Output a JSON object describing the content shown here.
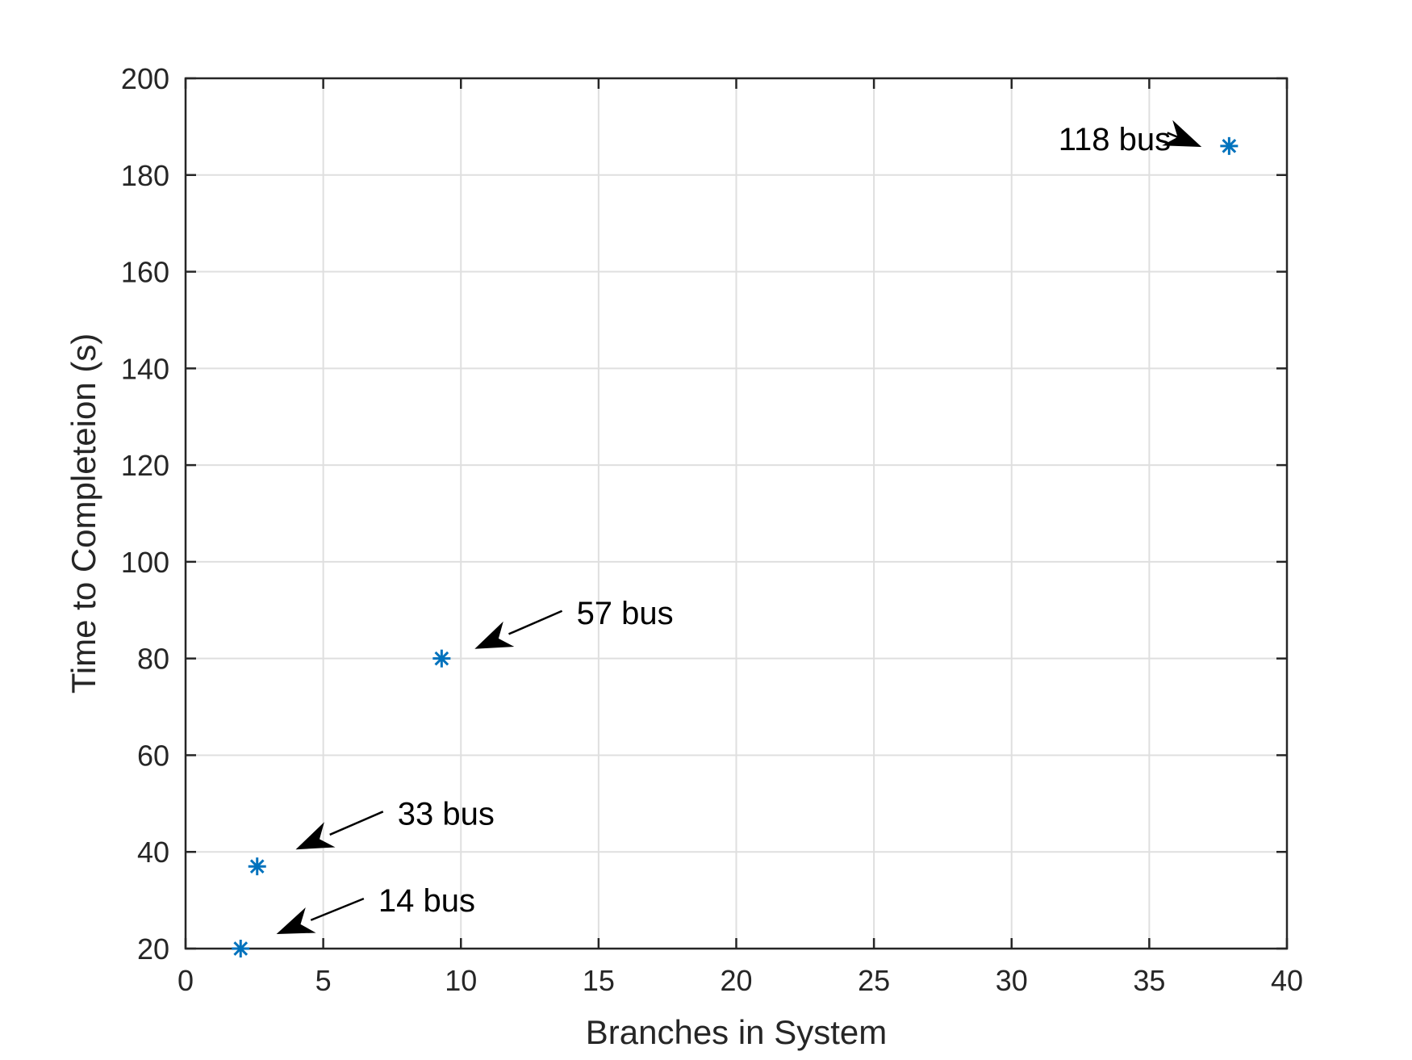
{
  "chart_data": {
    "type": "scatter",
    "title": "",
    "xlabel": "Branches in System",
    "ylabel": "Time to Completeion (s)",
    "xlim": [
      0,
      40
    ],
    "ylim": [
      20,
      200
    ],
    "xticks": [
      0,
      5,
      10,
      15,
      20,
      25,
      30,
      35,
      40
    ],
    "yticks": [
      20,
      40,
      60,
      80,
      100,
      120,
      140,
      160,
      180,
      200
    ],
    "xtick_labels": [
      "0",
      "5",
      "10",
      "15",
      "20",
      "25",
      "30",
      "35",
      "40"
    ],
    "ytick_labels": [
      "20",
      "40",
      "60",
      "80",
      "100",
      "120",
      "140",
      "160",
      "180",
      "200"
    ],
    "grid": true,
    "marker": "asterisk",
    "color": "#0072bd",
    "points": [
      {
        "x": 2,
        "y": 20
      },
      {
        "x": 2.6,
        "y": 37
      },
      {
        "x": 9.3,
        "y": 80
      },
      {
        "x": 37.9,
        "y": 186
      }
    ],
    "annotations": [
      {
        "text": "14 bus",
        "text_at": [
          7,
          30
        ],
        "arrow_to": [
          3.3,
          23
        ]
      },
      {
        "text": "33 bus",
        "text_at": [
          7.7,
          48
        ],
        "arrow_to": [
          4,
          40.5
        ]
      },
      {
        "text": "57 bus",
        "text_at": [
          14.2,
          89.5
        ],
        "arrow_to": [
          10.5,
          82
        ]
      },
      {
        "text": "118 bus",
        "text_at": [
          31.7,
          187.5
        ],
        "arrow_to": [
          36.9,
          185.8
        ]
      }
    ]
  }
}
